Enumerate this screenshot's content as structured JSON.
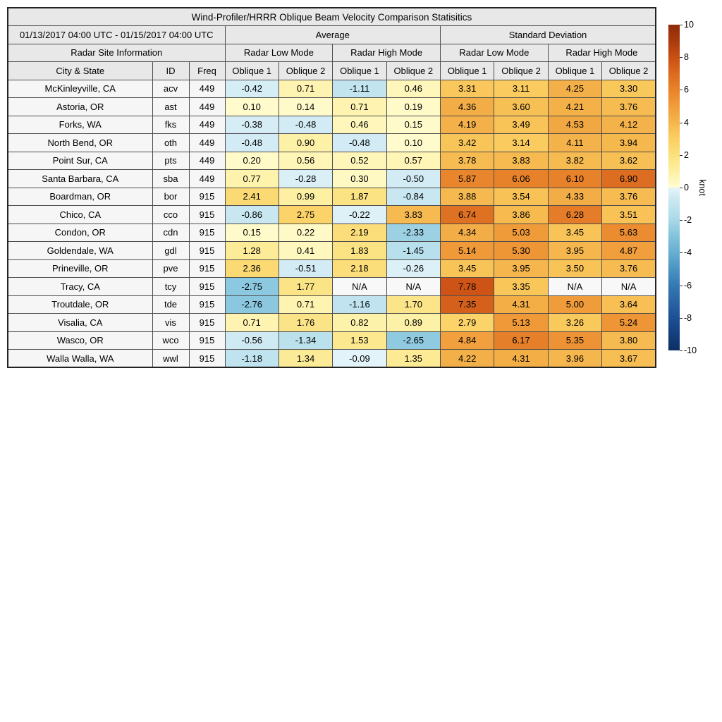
{
  "title": "Wind-Profiler/HRRR Oblique Beam Velocity Comparison Statisitics",
  "header": {
    "date_range": "01/13/2017 04:00 UTC - 01/15/2017 04:00 UTC",
    "group_average": "Average",
    "group_stddev": "Standard Deviation",
    "site_info": "Radar Site Information",
    "mode_labels": [
      "Radar Low Mode",
      "Radar High Mode",
      "Radar Low Mode",
      "Radar High Mode"
    ],
    "col_labels": [
      "City & State",
      "ID",
      "Freq",
      "Oblique 1",
      "Oblique 2",
      "Oblique 1",
      "Oblique 2",
      "Oblique 1",
      "Oblique 2",
      "Oblique 1",
      "Oblique 2"
    ]
  },
  "colorbar": {
    "label": "knot",
    "ticks": [
      10,
      8,
      6,
      4,
      2,
      0,
      -2,
      -4,
      -6,
      -8,
      -10
    ],
    "min": -10,
    "max": 10
  },
  "colormap": {
    "positive_stops": [
      [
        0,
        "#fffcd1"
      ],
      [
        1,
        "#fdf0a2"
      ],
      [
        2,
        "#fbe07e"
      ],
      [
        3,
        "#fbcf62"
      ],
      [
        4,
        "#f5b64c"
      ],
      [
        5,
        "#f09c3a"
      ],
      [
        6,
        "#e8832b"
      ],
      [
        7,
        "#dc6a1f"
      ],
      [
        8,
        "#c94e13"
      ],
      [
        9,
        "#a93b0d"
      ],
      [
        10,
        "#8e2b0a"
      ]
    ],
    "negative_stops": [
      [
        -10,
        "#0d2f63"
      ],
      [
        -9,
        "#143f7e"
      ],
      [
        -8,
        "#1d5095"
      ],
      [
        -7,
        "#2a64a4"
      ],
      [
        -6,
        "#3579b4"
      ],
      [
        -5,
        "#4a94c4"
      ],
      [
        -4,
        "#67aed1"
      ],
      [
        -3,
        "#82c3dc"
      ],
      [
        -2,
        "#a9d8e8"
      ],
      [
        -1,
        "#c4e5f0"
      ],
      [
        -0.5,
        "#d2ebf4"
      ],
      [
        0,
        "#e6f5fa"
      ]
    ],
    "na_color": "#f8f8f8"
  },
  "chart_data": {
    "type": "heatmap",
    "title": "Wind-Profiler/HRRR Oblique Beam Velocity Comparison Statisitics",
    "unit": "knot",
    "value_range": [
      -10,
      10
    ],
    "column_groups": [
      "Average / Radar Low Mode / Oblique 1",
      "Average / Radar Low Mode / Oblique 2",
      "Average / Radar High Mode / Oblique 1",
      "Average / Radar High Mode / Oblique 2",
      "Standard Deviation / Radar Low Mode / Oblique 1",
      "Standard Deviation / Radar Low Mode / Oblique 2",
      "Standard Deviation / Radar High Mode / Oblique 1",
      "Standard Deviation / Radar High Mode / Oblique 2"
    ],
    "rows": [
      {
        "city": "McKinleyville, CA",
        "id": "acv",
        "freq": "449",
        "values": [
          -0.42,
          0.71,
          -1.11,
          0.46,
          3.31,
          3.11,
          4.25,
          3.3
        ]
      },
      {
        "city": "Astoria, OR",
        "id": "ast",
        "freq": "449",
        "values": [
          0.1,
          0.14,
          0.71,
          0.19,
          4.36,
          3.6,
          4.21,
          3.76
        ]
      },
      {
        "city": "Forks, WA",
        "id": "fks",
        "freq": "449",
        "values": [
          -0.38,
          -0.48,
          0.46,
          0.15,
          4.19,
          3.49,
          4.53,
          4.12
        ]
      },
      {
        "city": "North Bend, OR",
        "id": "oth",
        "freq": "449",
        "values": [
          -0.48,
          0.9,
          -0.48,
          0.1,
          3.42,
          3.14,
          4.11,
          3.94
        ]
      },
      {
        "city": "Point Sur, CA",
        "id": "pts",
        "freq": "449",
        "values": [
          0.2,
          0.56,
          0.52,
          0.57,
          3.78,
          3.83,
          3.82,
          3.62
        ]
      },
      {
        "city": "Santa Barbara, CA",
        "id": "sba",
        "freq": "449",
        "values": [
          0.77,
          -0.28,
          0.3,
          -0.5,
          5.87,
          6.06,
          6.1,
          6.9
        ]
      },
      {
        "city": "Boardman, OR",
        "id": "bor",
        "freq": "915",
        "values": [
          2.41,
          0.99,
          1.87,
          -0.84,
          3.88,
          3.54,
          4.33,
          3.76
        ]
      },
      {
        "city": "Chico, CA",
        "id": "cco",
        "freq": "915",
        "values": [
          -0.86,
          2.75,
          -0.22,
          3.83,
          6.74,
          3.86,
          6.28,
          3.51
        ]
      },
      {
        "city": "Condon, OR",
        "id": "cdn",
        "freq": "915",
        "values": [
          0.15,
          0.22,
          2.19,
          -2.33,
          4.34,
          5.03,
          3.45,
          5.63
        ]
      },
      {
        "city": "Goldendale, WA",
        "id": "gdl",
        "freq": "915",
        "values": [
          1.28,
          0.41,
          1.83,
          -1.45,
          5.14,
          5.3,
          3.95,
          4.87
        ]
      },
      {
        "city": "Prineville, OR",
        "id": "pve",
        "freq": "915",
        "values": [
          2.36,
          -0.51,
          2.18,
          -0.26,
          3.45,
          3.95,
          3.5,
          3.76
        ]
      },
      {
        "city": "Tracy, CA",
        "id": "tcy",
        "freq": "915",
        "values": [
          -2.75,
          1.77,
          "N/A",
          "N/A",
          7.78,
          3.35,
          "N/A",
          "N/A"
        ]
      },
      {
        "city": "Troutdale, OR",
        "id": "tde",
        "freq": "915",
        "values": [
          -2.76,
          0.71,
          -1.16,
          1.7,
          7.35,
          4.31,
          5.0,
          3.64
        ]
      },
      {
        "city": "Visalia, CA",
        "id": "vis",
        "freq": "915",
        "values": [
          0.71,
          1.76,
          0.82,
          0.89,
          2.79,
          5.13,
          3.26,
          5.24
        ]
      },
      {
        "city": "Wasco, OR",
        "id": "wco",
        "freq": "915",
        "values": [
          -0.56,
          -1.34,
          1.53,
          -2.65,
          4.84,
          6.17,
          5.35,
          3.8
        ]
      },
      {
        "city": "Walla Walla, WA",
        "id": "wwl",
        "freq": "915",
        "values": [
          -1.18,
          1.34,
          -0.09,
          1.35,
          4.22,
          4.31,
          3.96,
          3.67
        ]
      }
    ]
  }
}
